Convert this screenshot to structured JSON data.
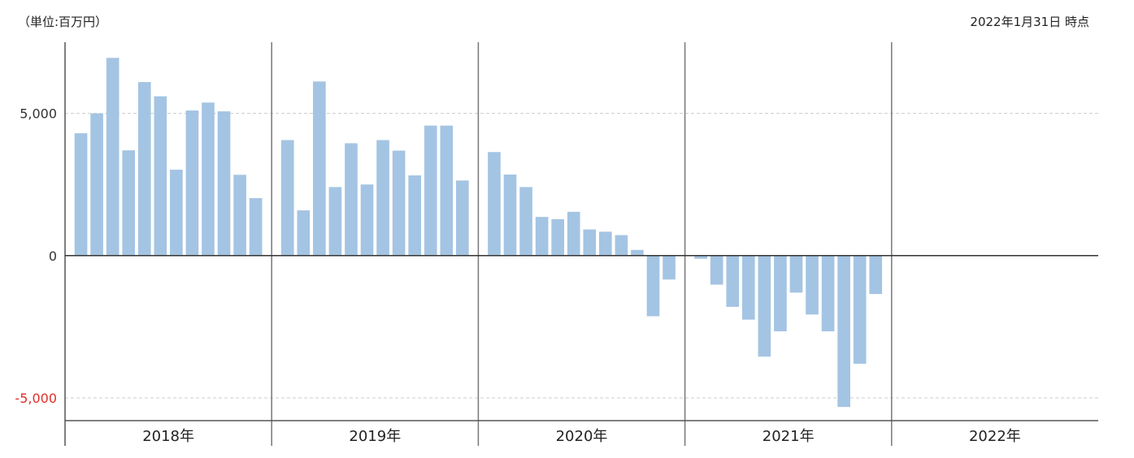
{
  "header": {
    "unit": "（単位:百万円）",
    "as_of": "2022年1月31日 時点"
  },
  "chart_data": {
    "type": "bar",
    "ylim": [
      -5800,
      7500
    ],
    "yticks": [
      {
        "value": 5000,
        "label": "5,000"
      },
      {
        "value": 0,
        "label": "0"
      },
      {
        "value": -5000,
        "label": "-5,000"
      }
    ],
    "groups": [
      {
        "label": "2018年",
        "values": [
          4300,
          5000,
          6950,
          3700,
          6100,
          5600,
          3020,
          5100,
          5380,
          5070,
          2840,
          2020
        ]
      },
      {
        "label": "2019年",
        "values": [
          4060,
          1590,
          6120,
          2410,
          3950,
          2500,
          4060,
          3690,
          2820,
          4570,
          4570,
          2640
        ]
      },
      {
        "label": "2020年",
        "values": [
          3640,
          2850,
          2410,
          1360,
          1280,
          1540,
          920,
          840,
          720,
          200,
          -2130,
          -840
        ]
      },
      {
        "label": "2021年",
        "values": [
          -110,
          -1020,
          -1800,
          -2250,
          -3550,
          -2660,
          -1300,
          -2070,
          -2660,
          -5320,
          -3800,
          -1350
        ]
      },
      {
        "label": "2022年",
        "values": []
      }
    ],
    "bar_color": "#a4c4e3",
    "negative_tick_color": "#e0302a",
    "grid": true
  }
}
